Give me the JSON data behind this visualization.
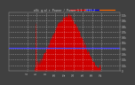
{
  "title": "eSt  g al  r  Power  /  Power 1 1  2015-2",
  "bg_color": "#404040",
  "plot_bg_color": "#404040",
  "grid_color": "#ffffff",
  "bar_color": "#cc0000",
  "avg_line_color": "#4444ff",
  "avg_line_value": 0.42,
  "ylim": [
    0,
    1.05
  ],
  "num_points": 288,
  "legend_line1_color": "#ff0000",
  "legend_line2_color": "#0000ff",
  "legend_line3_color": "#ff6600",
  "right_ylabel_vals": [
    "1.0k",
    "0.9k",
    "0.8k",
    "0.7k",
    "0.6k",
    "0.5k",
    "0.4k",
    "0.3k",
    "0.2k",
    "0.1k",
    "0"
  ],
  "x_tick_labels": [
    "4",
    "6",
    "8",
    "10",
    "12",
    "14",
    "16",
    "18",
    "20"
  ],
  "ytick_vals": [
    0.0,
    0.1,
    0.2,
    0.3,
    0.4,
    0.5,
    0.6,
    0.7,
    0.8,
    0.9,
    1.0
  ],
  "ytick_labels": [
    "0",
    "0.1k",
    "0.2k",
    "0.3k",
    "0.4k",
    "0.5k",
    "0.6k",
    "0.7k",
    "0.8k",
    "0.9k",
    "1.0k"
  ]
}
